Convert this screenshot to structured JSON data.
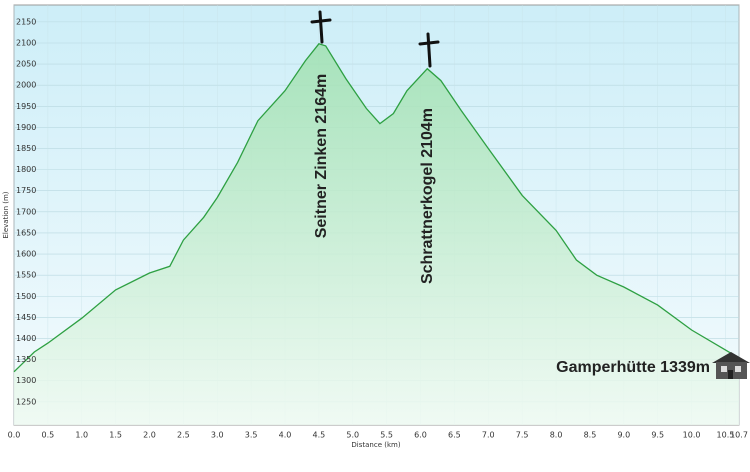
{
  "chart_data": {
    "type": "area",
    "x_label": "Distance  (km)",
    "y_label": "Elevation (m)",
    "x": [
      0,
      0.3,
      0.5,
      1.0,
      1.5,
      2.0,
      2.3,
      2.5,
      2.8,
      3.0,
      3.3,
      3.6,
      4.0,
      4.3,
      4.5,
      4.6,
      4.9,
      5.2,
      5.4,
      5.6,
      5.8,
      6.1,
      6.3,
      6.6,
      7.0,
      7.5,
      8.0,
      8.3,
      8.6,
      9.0,
      9.5,
      10.0,
      10.5,
      10.7
    ],
    "series": [
      {
        "color": "#2ea043",
        "values": [
          1321,
          1368,
          1389,
          1448,
          1515,
          1555,
          1571,
          1633,
          1687,
          1734,
          1817,
          1916,
          1987,
          2058,
          2098,
          2093,
          2015,
          1945,
          1909,
          1933,
          1987,
          2039,
          2011,
          1940,
          1850,
          1739,
          1656,
          1586,
          1550,
          1522,
          1479,
          1420,
          1373,
          1354
        ]
      }
    ],
    "xlim": [
      0,
      10.7
    ],
    "ylim": [
      1195,
      2190
    ],
    "xticks": [
      {
        "value": 0,
        "label": "0.0"
      },
      0.5,
      {
        "value": 1,
        "label": "1.0"
      },
      1.5,
      {
        "value": 2,
        "label": "2.0"
      },
      2.5,
      {
        "value": 3,
        "label": "3.0"
      },
      3.5,
      {
        "value": 4,
        "label": "4.0"
      },
      4.5,
      {
        "value": 5,
        "label": "5.0"
      },
      5.5,
      {
        "value": 6,
        "label": "6.0"
      },
      6.5,
      {
        "value": 7,
        "label": "7.0"
      },
      7.5,
      {
        "value": 8,
        "label": "8.0"
      },
      8.5,
      {
        "value": 9,
        "label": "9.0"
      },
      9.5,
      {
        "value": 10,
        "label": "10.0"
      },
      10.5,
      10.7
    ],
    "yticks": [
      1250,
      1300,
      1350,
      1400,
      1450,
      1500,
      1550,
      1600,
      1650,
      1700,
      1750,
      1800,
      1850,
      1900,
      1950,
      2000,
      2050,
      2100,
      2150
    ],
    "grid": true,
    "annotations": [
      "Seitner Zinken 2164m",
      "Schrattnerkogel 2104m",
      "Gamperhütte 1339m"
    ]
  }
}
